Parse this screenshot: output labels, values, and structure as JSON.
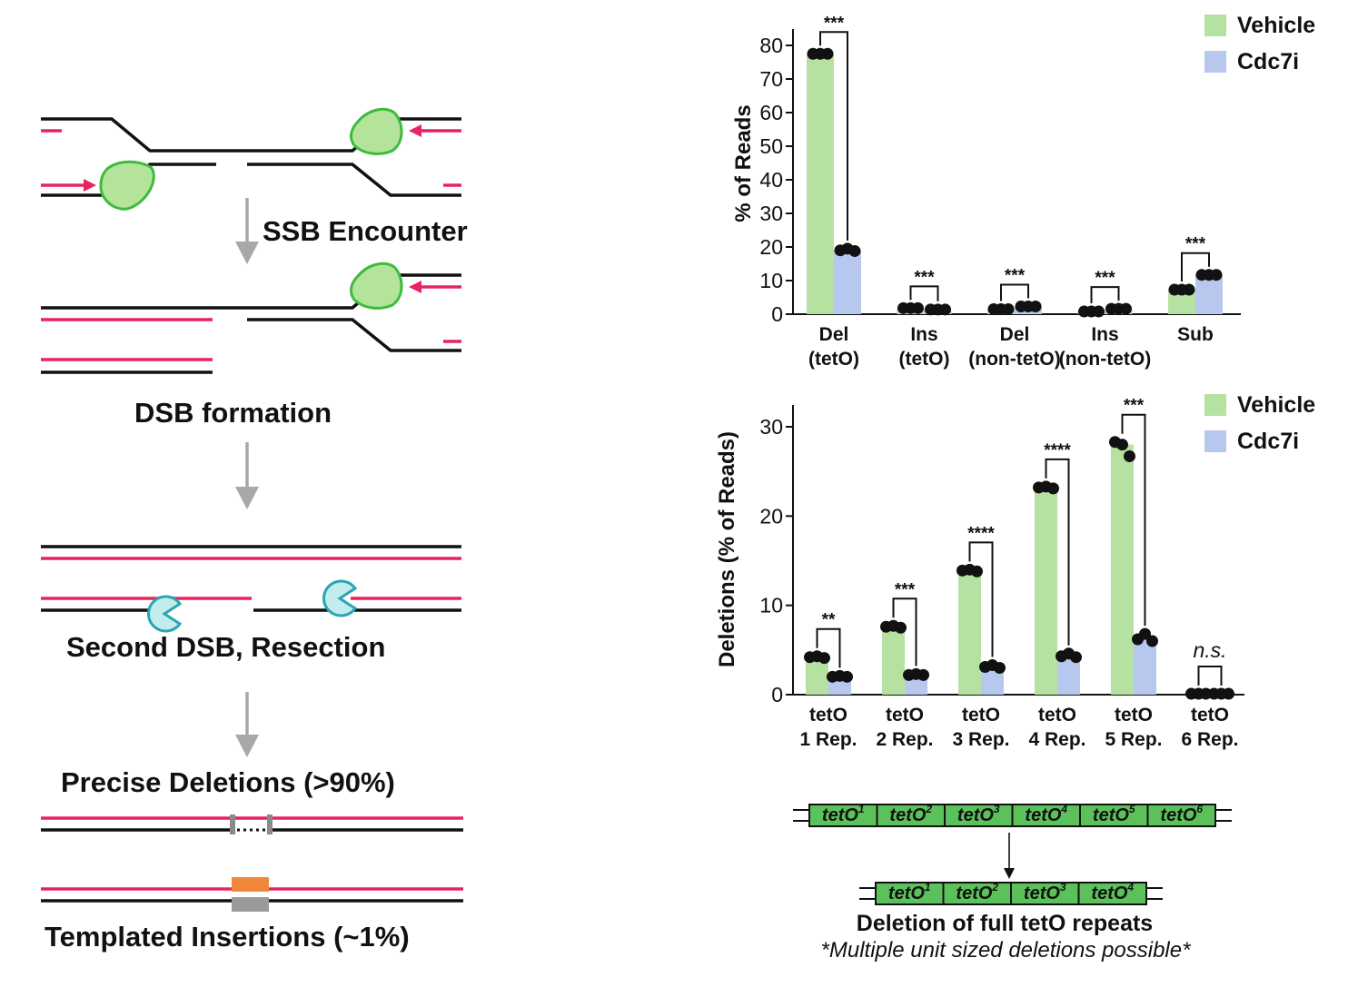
{
  "colors": {
    "vehicle": "#b6e2a1",
    "cdc7i": "#b7c7ee",
    "strand_black": "#111111",
    "strand_pink": "#e8235f",
    "helicase_fill": "#b4e49c",
    "helicase_stroke": "#3dbb3d",
    "nuclease_fill": "#c3ecec",
    "nuclease_stroke": "#2aa5b5",
    "arrow_grey": "#a8a8a8",
    "insert_orange": "#f0873a",
    "insert_grey": "#9a9a9a",
    "teto_green": "#5bc25b"
  },
  "schematic": {
    "step1": "SSB Encounter",
    "step2": "DSB formation",
    "step3": "Second DSB, Resection",
    "step4": "Precise Deletions (>90%)",
    "step5": "Templated Insertions (~1%)",
    "icons": [
      "cmg-helicase-icon",
      "nuclease-pacman-icon",
      "down-arrow-icon"
    ]
  },
  "chart_data": [
    {
      "type": "bar",
      "ylabel": "% of Reads",
      "ylim": [
        0,
        80
      ],
      "yticks": [
        0,
        10,
        20,
        30,
        40,
        50,
        60,
        70,
        80
      ],
      "categories": [
        {
          "line1": "Del",
          "line2": "(tetO)"
        },
        {
          "line1": "Ins",
          "line2": "(tetO)"
        },
        {
          "line1": "Del",
          "line2": "(non-tetO)"
        },
        {
          "line1": "Ins",
          "line2": "(non-tetO)"
        },
        {
          "line1": "Sub",
          "line2": ""
        }
      ],
      "series": [
        {
          "name": "Vehicle",
          "values": [
            77.5,
            1.8,
            1.5,
            0.8,
            7.3
          ]
        },
        {
          "name": "Cdc7i",
          "values": [
            19.0,
            1.4,
            2.3,
            1.6,
            11.7
          ]
        }
      ],
      "points": [
        [
          [
            77.5,
            77.5,
            77.5
          ],
          [
            1.8,
            1.8,
            1.8
          ],
          [
            1.5,
            1.5,
            1.5
          ],
          [
            0.8,
            0.8,
            0.8
          ],
          [
            7.3,
            7.3,
            7.3
          ]
        ],
        [
          [
            19.0,
            19.5,
            18.8
          ],
          [
            1.4,
            1.4,
            1.4
          ],
          [
            2.3,
            2.3,
            2.3
          ],
          [
            1.6,
            1.6,
            1.6
          ],
          [
            11.7,
            11.7,
            11.7
          ]
        ]
      ],
      "significance": [
        "***",
        "***",
        "***",
        "***",
        "***"
      ],
      "legend": "top-right"
    },
    {
      "type": "bar",
      "ylabel": "Deletions  (% of Reads)",
      "ylim": [
        0,
        30
      ],
      "yticks": [
        0,
        10,
        20,
        30
      ],
      "categories": [
        {
          "line1": "tetO",
          "line2": "1 Rep."
        },
        {
          "line1": "tetO",
          "line2": "2 Rep."
        },
        {
          "line1": "tetO",
          "line2": "3 Rep."
        },
        {
          "line1": "tetO",
          "line2": "4 Rep."
        },
        {
          "line1": "tetO",
          "line2": "5 Rep."
        },
        {
          "line1": "tetO",
          "line2": "6 Rep."
        }
      ],
      "series": [
        {
          "name": "Vehicle",
          "values": [
            4.2,
            7.6,
            13.9,
            23.2,
            28.0,
            0.1
          ]
        },
        {
          "name": "Cdc7i",
          "values": [
            2.0,
            2.2,
            3.1,
            4.3,
            6.2,
            0.1
          ]
        }
      ],
      "points": [
        [
          [
            4.2,
            4.3,
            4.1
          ],
          [
            7.6,
            7.7,
            7.5
          ],
          [
            13.9,
            14.0,
            13.8
          ],
          [
            23.2,
            23.3,
            23.1
          ],
          [
            28.3,
            28.0,
            26.7
          ],
          [
            0.1,
            0.1,
            0.1
          ]
        ],
        [
          [
            2.0,
            2.1,
            2.0
          ],
          [
            2.2,
            2.3,
            2.2
          ],
          [
            3.1,
            3.3,
            3.0
          ],
          [
            4.3,
            4.6,
            4.2
          ],
          [
            6.2,
            6.8,
            6.0
          ],
          [
            0.1,
            0.1,
            0.1
          ]
        ]
      ],
      "significance": [
        "**",
        "***",
        "****",
        "****",
        "***",
        "n.s."
      ],
      "legend": "top-right"
    }
  ],
  "teto": {
    "top_units": [
      "tetO1",
      "tetO2",
      "tetO3",
      "tetO4",
      "tetO5",
      "tetO6"
    ],
    "bottom_units": [
      "tetO1",
      "tetO2",
      "tetO3",
      "tetO4"
    ],
    "base": "tetO",
    "superscripts_top": [
      "1",
      "2",
      "3",
      "4",
      "5",
      "6"
    ],
    "superscripts_bottom": [
      "1",
      "2",
      "3",
      "4"
    ],
    "caption": "Deletion of full tetO repeats",
    "subcaption": "*Multiple unit sized deletions possible*"
  }
}
